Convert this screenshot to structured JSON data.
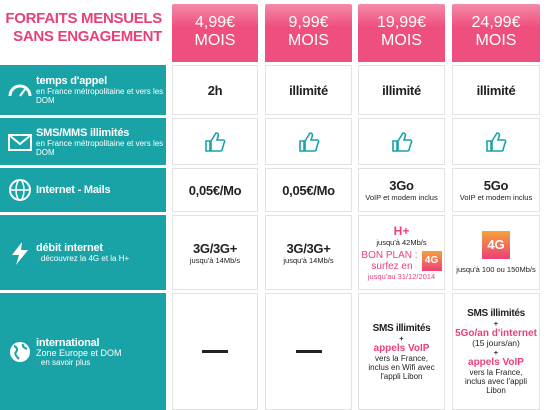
{
  "header": {
    "title_lines": [
      "FORFAITS MENSUELS",
      "SANS ENGAGEMENT"
    ]
  },
  "plans": [
    {
      "price": "4,99€",
      "period": "MOIS"
    },
    {
      "price": "9,99€",
      "period": "MOIS"
    },
    {
      "price": "19,99€",
      "period": "MOIS"
    },
    {
      "price": "24,99€",
      "period": "MOIS"
    }
  ],
  "features": [
    {
      "label": "temps d'appel",
      "detail": "en France métropolitaine et vers les DOM",
      "cells": [
        [
          "2h"
        ],
        [
          "illimité"
        ],
        [
          "illimité"
        ],
        [
          "illimité"
        ]
      ]
    },
    {
      "label": "SMS/MMS illimités",
      "detail": "en France métropolitaine et vers les DOM"
    },
    {
      "label": "Internet - Mails",
      "cells": [
        [
          "0,05€/Mo"
        ],
        [
          "0,05€/Mo"
        ],
        [
          "3Go",
          "VoIP et modem inclus"
        ],
        [
          "5Go",
          "VoIP et modem inclus"
        ]
      ]
    },
    {
      "label": "débit internet",
      "link": "découvrez la 4G et la H+",
      "cells": [
        [
          "3G/3G+",
          "jusqu'à 14Mb/s"
        ],
        [
          "3G/3G+",
          "jusqu'à 14Mb/s"
        ],
        [
          "H+",
          "jusqu'à 42Mb/s",
          "BON PLAN :",
          "surfez en",
          "4G",
          "jusqu'au 31/12/2014"
        ],
        [
          "4G",
          "jusqu'à 100 ou 150Mb/s"
        ]
      ]
    },
    {
      "label": "international",
      "detail": "Zone Europe et DOM",
      "link": "en savoir plus",
      "cells": [
        null,
        null,
        [
          "SMS illimités",
          "+",
          "appels VoIP",
          "vers la France, inclus en Wifi avec l'appli Libon"
        ],
        [
          "SMS illimités",
          "+",
          "5Go/an d'internet",
          "(15 jours/an)",
          "+",
          "appels VoIP",
          "vers la France, inclus avec l'appli Libon"
        ]
      ]
    }
  ]
}
